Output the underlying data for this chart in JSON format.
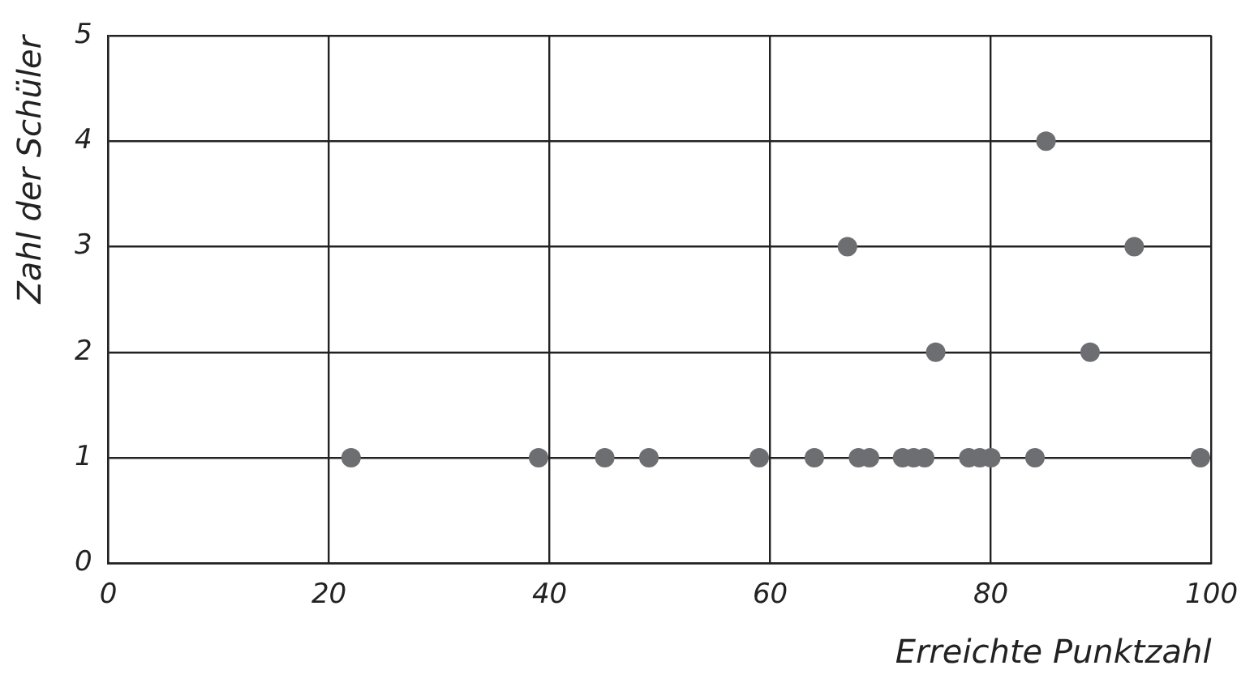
{
  "chart_data": {
    "type": "scatter",
    "xlabel": "Erreichte Punktzahl",
    "ylabel": "Zahl der Schüler",
    "x": [
      22,
      39,
      45,
      49,
      59,
      64,
      68,
      69,
      72,
      73,
      74,
      78,
      79,
      80,
      84,
      99,
      75,
      89,
      67,
      93,
      85
    ],
    "series": [
      {
        "color": "#6d6e71",
        "values": [
          1,
          1,
          1,
          1,
          1,
          1,
          1,
          1,
          1,
          1,
          1,
          1,
          1,
          1,
          1,
          1,
          2,
          2,
          3,
          3,
          4
        ]
      }
    ],
    "xlim": [
      0,
      100
    ],
    "xticks": [
      0,
      20,
      40,
      60,
      80,
      100
    ],
    "ylim": [
      0,
      5
    ],
    "yticks": [
      0,
      1,
      2,
      3,
      4,
      5
    ],
    "grid": true,
    "marker": "circle"
  }
}
